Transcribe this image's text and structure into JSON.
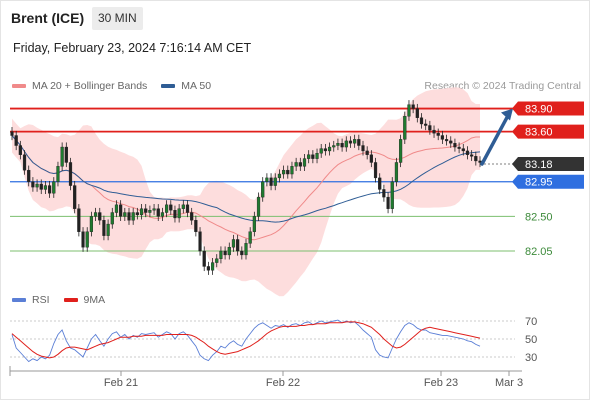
{
  "header": {
    "instrument": "Brent (ICE)",
    "timeframe": "30 MIN"
  },
  "datetime": "Friday, February 23, 2024 7:16:14 AM CET",
  "credit": "Research © 2024 Trading Central",
  "legend_main": [
    {
      "label": "MA 20 + Bollinger Bands",
      "color": "#f08a8a"
    },
    {
      "label": "MA 50",
      "color": "#2f5d95"
    }
  ],
  "legend_rsi": [
    {
      "label": "RSI",
      "color": "#5b7fd6"
    },
    {
      "label": "9MA",
      "color": "#e0201c"
    }
  ],
  "colors": {
    "resistance": "#e0201c",
    "support": "#2f6fe0",
    "target": "#7cbf6f",
    "current": "#333333",
    "arrow": "#2f5d95",
    "band": "#fdd9d9",
    "candle": "#1f7a2f"
  },
  "chart_data": [
    {
      "type": "candlestick",
      "x_ticks": [
        "Feb 21",
        "Feb 22",
        "Feb 23",
        "Mar 3"
      ],
      "levels": [
        {
          "value": 83.9,
          "label": "83.90",
          "kind": "resistance"
        },
        {
          "value": 83.6,
          "label": "83.60",
          "kind": "resistance"
        },
        {
          "value": 83.18,
          "label": "83.18",
          "kind": "current"
        },
        {
          "value": 82.95,
          "label": "82.95",
          "kind": "support"
        },
        {
          "value": 82.5,
          "label": "82.50",
          "kind": "target"
        },
        {
          "value": 82.05,
          "label": "82.05",
          "kind": "target"
        }
      ],
      "close": [
        83.55,
        83.42,
        83.3,
        83.1,
        82.95,
        82.88,
        82.92,
        82.85,
        82.9,
        82.8,
        82.95,
        83.15,
        83.4,
        83.2,
        82.9,
        82.6,
        82.3,
        82.1,
        82.3,
        82.5,
        82.55,
        82.45,
        82.25,
        82.4,
        82.55,
        82.65,
        82.5,
        82.55,
        82.45,
        82.55,
        82.52,
        82.6,
        82.55,
        82.58,
        82.6,
        82.5,
        82.55,
        82.65,
        82.58,
        82.48,
        82.6,
        82.65,
        82.55,
        82.45,
        82.3,
        82.05,
        81.85,
        81.8,
        81.9,
        81.95,
        82.05,
        82.0,
        82.1,
        82.2,
        82.05,
        82.0,
        82.15,
        82.3,
        82.5,
        82.75,
        82.95,
        83.0,
        82.9,
        83.0,
        83.05,
        83.1,
        83.05,
        83.15,
        83.2,
        83.15,
        83.25,
        83.3,
        83.25,
        83.32,
        83.38,
        83.35,
        83.4,
        83.42,
        83.45,
        83.4,
        83.48,
        83.45,
        83.5,
        83.42,
        83.35,
        83.3,
        83.2,
        83.0,
        82.85,
        82.75,
        82.6,
        82.95,
        83.2,
        83.5,
        83.8,
        83.95,
        83.9,
        83.78,
        83.7,
        83.68,
        83.62,
        83.58,
        83.55,
        83.5,
        83.48,
        83.45,
        83.4,
        83.38,
        83.35,
        83.3,
        83.28,
        83.22,
        83.2
      ],
      "rsi_ticks": [
        70,
        50,
        30
      ],
      "rsi_range": [
        20,
        80
      ],
      "rsi": [
        55,
        40,
        35,
        30,
        25,
        28,
        26,
        30,
        28,
        32,
        45,
        55,
        60,
        48,
        40,
        38,
        34,
        30,
        40,
        50,
        55,
        48,
        42,
        50,
        56,
        58,
        52,
        55,
        50,
        54,
        52,
        56,
        55,
        56,
        57,
        52,
        55,
        58,
        56,
        50,
        56,
        58,
        54,
        48,
        42,
        32,
        28,
        26,
        32,
        36,
        42,
        40,
        45,
        48,
        44,
        42,
        50,
        56,
        62,
        66,
        68,
        65,
        62,
        65,
        64,
        66,
        63,
        66,
        67,
        65,
        68,
        69,
        66,
        68,
        70,
        68,
        69,
        70,
        71,
        68,
        70,
        68,
        69,
        65,
        60,
        56,
        52,
        38,
        32,
        30,
        29,
        40,
        50,
        58,
        65,
        68,
        66,
        62,
        60,
        60,
        57,
        56,
        55,
        54,
        54,
        53,
        52,
        51,
        50,
        48,
        47,
        44,
        42
      ],
      "rsi_9ma": [
        56,
        52,
        48,
        44,
        40,
        36,
        33,
        31,
        30,
        29,
        30,
        33,
        37,
        40,
        41,
        41,
        40,
        39,
        38,
        40,
        42,
        44,
        45,
        46,
        48,
        50,
        52,
        52,
        52,
        53,
        53,
        53,
        54,
        54,
        54,
        54,
        54,
        55,
        55,
        55,
        55,
        55,
        55,
        54,
        52,
        49,
        46,
        42,
        39,
        36,
        34,
        33,
        34,
        35,
        36,
        38,
        40,
        42,
        45,
        48,
        52,
        56,
        59,
        61,
        63,
        64,
        64,
        64,
        64,
        65,
        65,
        66,
        66,
        67,
        67,
        67,
        68,
        68,
        68,
        68,
        69,
        69,
        69,
        68,
        67,
        65,
        63,
        59,
        55,
        50,
        46,
        42,
        40,
        41,
        44,
        48,
        52,
        56,
        60,
        62,
        63,
        62,
        61,
        60,
        59,
        58,
        57,
        56,
        55,
        54,
        53,
        52,
        51
      ],
      "target_arrow": {
        "from": 83.18,
        "to": 83.9
      },
      "ylim": [
        81.7,
        84.05
      ]
    }
  ]
}
